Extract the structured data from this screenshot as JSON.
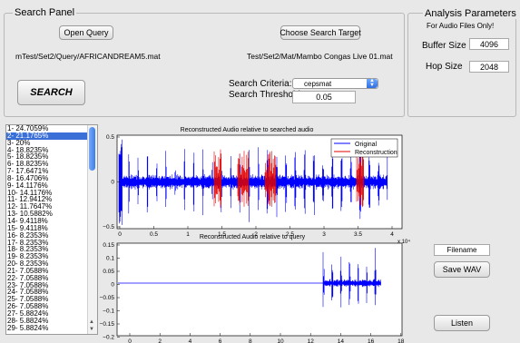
{
  "search_panel": {
    "title": "Search Panel",
    "open_query_label": "Open Query",
    "choose_target_label": "Choose Search Target",
    "query_path": "mTest/Set2/Query/AFRICANDREAM5.mat",
    "target_path": "Test/Set2/Mat/Mambo Congas Live 01.mat",
    "search_label": "SEARCH",
    "criteria_label": "Search Criteria:",
    "criteria_value": "cepsmat",
    "threshold_label": "Search Threshold:",
    "threshold_value": "0.05"
  },
  "analysis": {
    "title": "Analysis Parameters",
    "subtitle": "For Audio Files Only!",
    "buffer_label": "Buffer Size",
    "buffer_value": "4096",
    "hop_label": "Hop Size",
    "hop_value": "2048"
  },
  "results": [
    "1- 24.7059%",
    "2- 21.1765%",
    "3- 20%",
    "4- 18.8235%",
    "5- 18.8235%",
    "6- 18.8235%",
    "7- 17.6471%",
    "8- 16.4706%",
    "9- 14.1176%",
    "10- 14.1176%",
    "11- 12.9412%",
    "12- 11.7647%",
    "13- 10.5882%",
    "14- 9.4118%",
    "15- 9.4118%",
    "16- 8.2353%",
    "17- 8.2353%",
    "18- 8.2353%",
    "19- 8.2353%",
    "20- 8.2353%",
    "21- 7.0588%",
    "22- 7.0588%",
    "23- 7.0588%",
    "24- 7.0588%",
    "25- 7.0588%",
    "26- 7.0588%",
    "27- 5.8824%",
    "28- 5.8824%",
    "29- 5.8824%"
  ],
  "selected_result_index": 1,
  "plots": {
    "top": {
      "title": "Reconstructed Audio relative to searched audio",
      "y_ticks": [
        "0.5",
        "0",
        "−0.5"
      ],
      "x_ticks": [
        "0",
        "0.5",
        "1",
        "1.5",
        "2",
        "2.5",
        "3",
        "3.5",
        "4"
      ],
      "x_exponent": "x 10⁴",
      "legend": [
        "Original",
        "Reconstruction"
      ],
      "colors": {
        "original": "#0000ff",
        "reconstruction": "#e00000"
      }
    },
    "bottom": {
      "title": "Reconstructed Audio relative to query",
      "y_ticks": [
        "0.15",
        "0.1",
        "0.05",
        "0",
        "−0.05",
        "−0.1",
        "−0.15",
        "−0.2"
      ],
      "x_ticks": [
        "0",
        "2",
        "4",
        "6",
        "8",
        "10",
        "12",
        "14",
        "16",
        "18"
      ],
      "color": "#0000ff"
    }
  },
  "output": {
    "filename_value": "Filename",
    "save_label": "Save WAV",
    "listen_label": "Listen"
  }
}
